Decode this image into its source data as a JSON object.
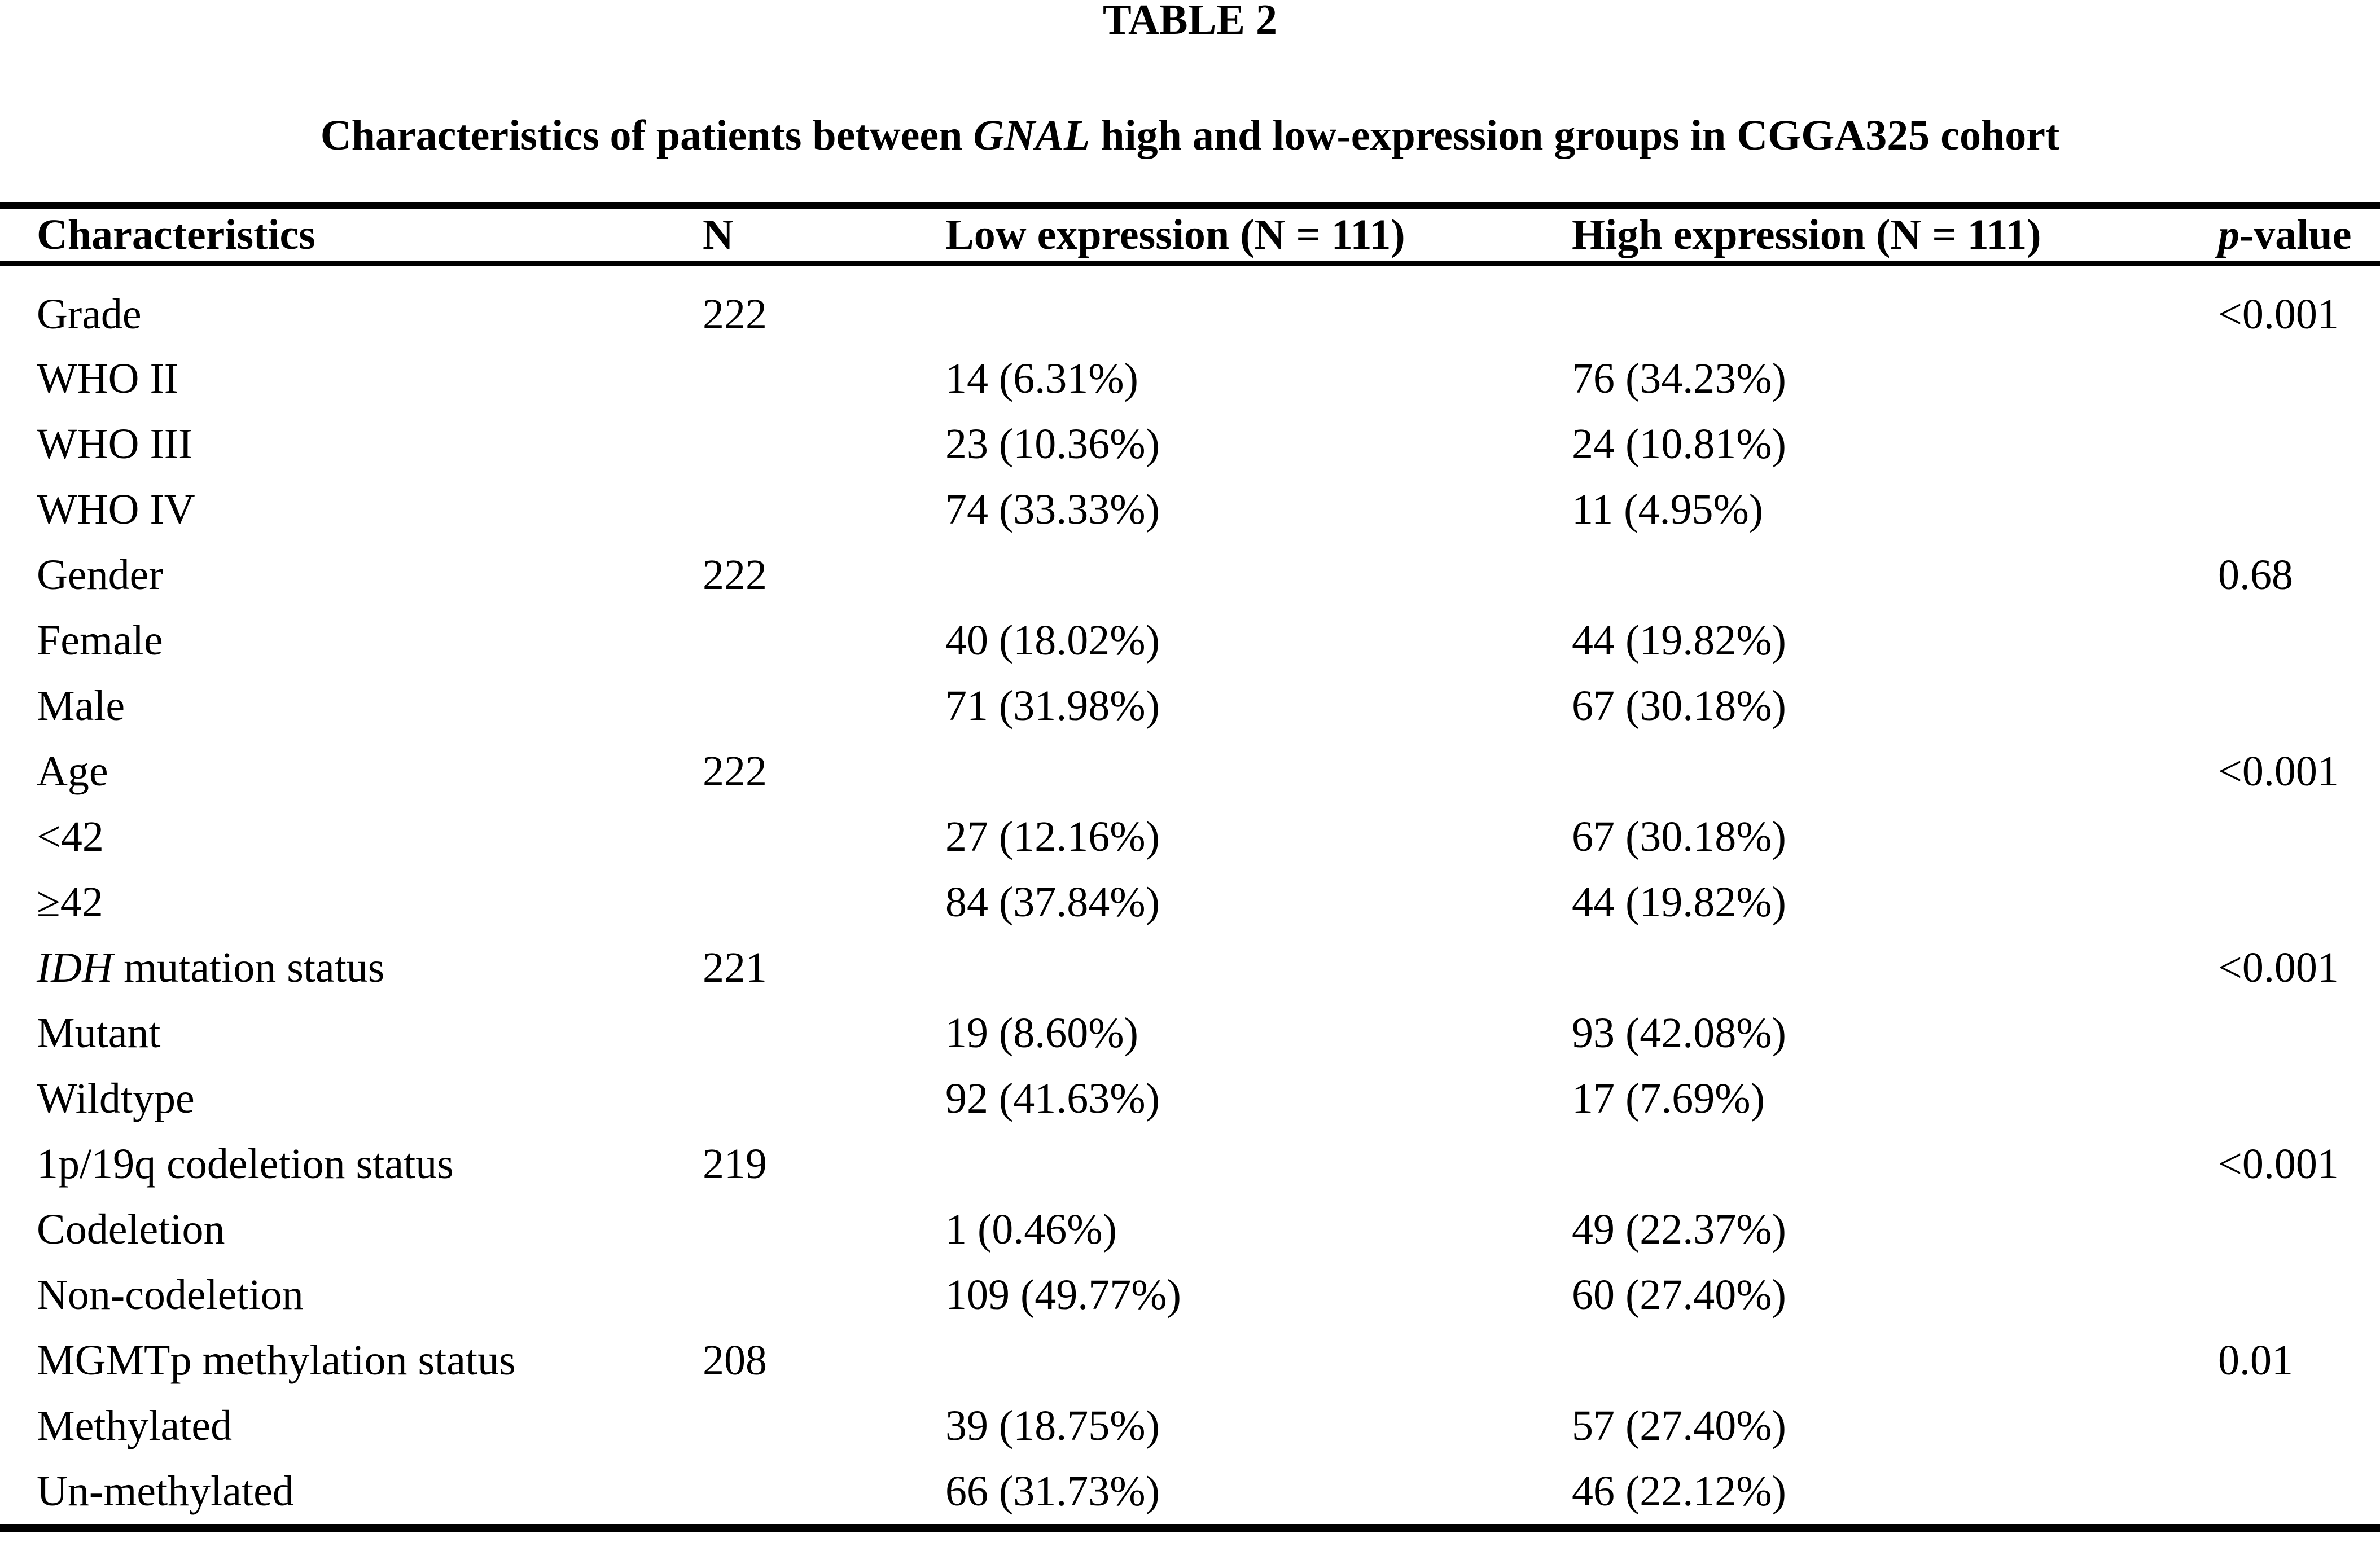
{
  "page": {
    "title": "TABLE 2"
  },
  "subtitle": {
    "pre": "Characteristics of patients between ",
    "gene": "GNAL",
    "post": " high and low-expression groups in CGGA325 cohort"
  },
  "colors": {
    "text": "#000000",
    "background": "#ffffff",
    "rule": "#000000"
  },
  "table": {
    "header": {
      "characteristics": "Characteristics",
      "n": "N",
      "low": "Low expression (N = 111)",
      "high": "High expression (N = 111)",
      "p_italic": "p",
      "p_rest": "-value"
    },
    "rows": [
      {
        "italic": "",
        "label": "Grade",
        "n": "222",
        "low": "",
        "high": "",
        "p": "<0.001"
      },
      {
        "italic": "",
        "label": "WHO II",
        "n": "",
        "low": "14 (6.31%)",
        "high": "76 (34.23%)",
        "p": ""
      },
      {
        "italic": "",
        "label": "WHO III",
        "n": "",
        "low": "23 (10.36%)",
        "high": "24 (10.81%)",
        "p": ""
      },
      {
        "italic": "",
        "label": "WHO IV",
        "n": "",
        "low": "74 (33.33%)",
        "high": "11 (4.95%)",
        "p": ""
      },
      {
        "italic": "",
        "label": "Gender",
        "n": "222",
        "low": "",
        "high": "",
        "p": "0.68"
      },
      {
        "italic": "",
        "label": "Female",
        "n": "",
        "low": "40 (18.02%)",
        "high": "44 (19.82%)",
        "p": ""
      },
      {
        "italic": "",
        "label": "Male",
        "n": "",
        "low": "71 (31.98%)",
        "high": "67 (30.18%)",
        "p": ""
      },
      {
        "italic": "",
        "label": "Age",
        "n": "222",
        "low": "",
        "high": "",
        "p": "<0.001"
      },
      {
        "italic": "",
        "label": "<42",
        "n": "",
        "low": "27 (12.16%)",
        "high": "67 (30.18%)",
        "p": ""
      },
      {
        "italic": "",
        "label": "≥42",
        "n": "",
        "low": "84 (37.84%)",
        "high": "44 (19.82%)",
        "p": ""
      },
      {
        "italic": "IDH",
        "label": " mutation status",
        "n": "221",
        "low": "",
        "high": "",
        "p": "<0.001"
      },
      {
        "italic": "",
        "label": "Mutant",
        "n": "",
        "low": "19 (8.60%)",
        "high": "93 (42.08%)",
        "p": ""
      },
      {
        "italic": "",
        "label": "Wildtype",
        "n": "",
        "low": "92 (41.63%)",
        "high": "17 (7.69%)",
        "p": ""
      },
      {
        "italic": "",
        "label": "1p/19q codeletion status",
        "n": "219",
        "low": "",
        "high": "",
        "p": "<0.001"
      },
      {
        "italic": "",
        "label": "Codeletion",
        "n": "",
        "low": "1 (0.46%)",
        "high": "49 (22.37%)",
        "p": ""
      },
      {
        "italic": "",
        "label": "Non-codeletion",
        "n": "",
        "low": "109 (49.77%)",
        "high": "60 (27.40%)",
        "p": ""
      },
      {
        "italic": "",
        "label": "MGMTp methylation status",
        "n": "208",
        "low": "",
        "high": "",
        "p": "0.01"
      },
      {
        "italic": "",
        "label": "Methylated",
        "n": "",
        "low": "39 (18.75%)",
        "high": "57 (27.40%)",
        "p": ""
      },
      {
        "italic": "",
        "label": "Un-methylated",
        "n": "",
        "low": "66 (31.73%)",
        "high": "46 (22.12%)",
        "p": ""
      }
    ]
  }
}
